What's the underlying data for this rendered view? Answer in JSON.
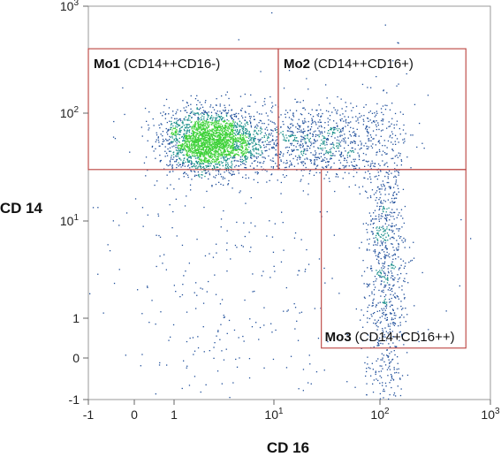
{
  "chart_data": {
    "type": "scatter",
    "title": "",
    "xlabel": "CD 16",
    "ylabel": "CD 14",
    "x_scale": "biexponential",
    "y_scale": "biexponential",
    "xlim": [
      -1,
      1000
    ],
    "ylim": [
      -1,
      1000
    ],
    "x_ticks": [
      {
        "value": -1,
        "base": "-1",
        "exp": ""
      },
      {
        "value": 0,
        "base": "0",
        "exp": ""
      },
      {
        "value": 1,
        "base": "1",
        "exp": ""
      },
      {
        "value": 10,
        "base": "10",
        "exp": "1"
      },
      {
        "value": 100,
        "base": "10",
        "exp": "2"
      },
      {
        "value": 1000,
        "base": "10",
        "exp": "3"
      }
    ],
    "y_ticks": [
      {
        "value": -1,
        "base": "-1",
        "exp": ""
      },
      {
        "value": 0,
        "base": "0",
        "exp": ""
      },
      {
        "value": 1,
        "base": "1",
        "exp": ""
      },
      {
        "value": 10,
        "base": "10",
        "exp": "1"
      },
      {
        "value": 100,
        "base": "10",
        "exp": "2"
      },
      {
        "value": 1000,
        "base": "10",
        "exp": "3"
      }
    ],
    "gates": [
      {
        "name": "Mo1",
        "markers": "(CD14++CD16-)",
        "x_range": [
          -1,
          11
        ],
        "y_range": [
          30,
          400
        ]
      },
      {
        "name": "Mo2",
        "markers": "(CD14++CD16+)",
        "x_range": [
          11,
          600
        ],
        "y_range": [
          30,
          400
        ]
      },
      {
        "name": "Mo3",
        "markers": "(CD14+CD16++)",
        "x_range": [
          28,
          600
        ],
        "y_range": [
          0.25,
          30
        ]
      }
    ],
    "populations": [
      {
        "label": "Mo1",
        "center_x": 2.3,
        "center_y": 55,
        "spread_x_decades": 0.22,
        "spread_y_decades": 0.14,
        "relative_density": "very high"
      },
      {
        "label": "Mo2",
        "center_x": 25,
        "center_y": 55,
        "spread_x_decades": 0.35,
        "spread_y_decades": 0.18,
        "relative_density": "medium"
      },
      {
        "label": "Mo3",
        "center_x": 110,
        "center_y": 4,
        "spread_x_decades": 0.1,
        "spread_y_decades": 0.8,
        "relative_density": "medium"
      },
      {
        "label": "scattered",
        "center_x": 3,
        "center_y": 2,
        "spread_x_decades": 0.8,
        "spread_y_decades": 0.9,
        "relative_density": "low"
      }
    ],
    "colors": {
      "gate": "#c0504d",
      "low_density": "#1f4e9a",
      "mid_density": "#1a8f8a",
      "high_density": "#3fd23a"
    },
    "grid": false
  }
}
